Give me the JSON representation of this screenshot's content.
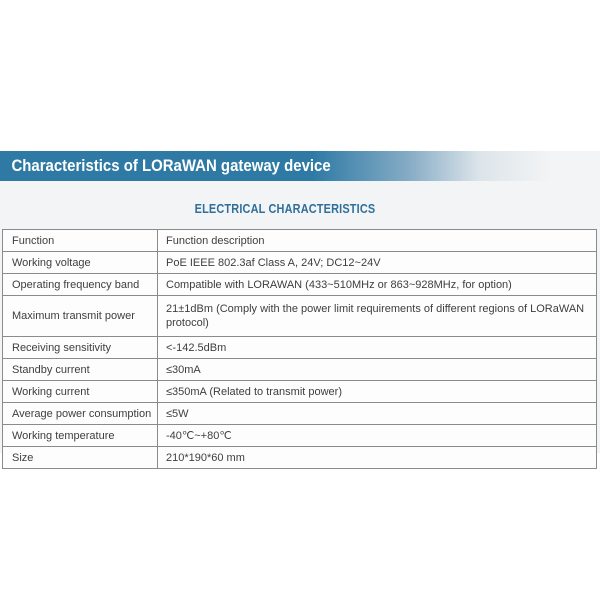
{
  "banner": {
    "title": "Characteristics of LORaWAN gateway device",
    "bg_color": "#2e7aa5",
    "text_color": "#ffffff"
  },
  "section": {
    "heading": "ELECTRICAL CHARACTERISTICS",
    "color": "#2f6f9b"
  },
  "table": {
    "columns": [
      "Function",
      "Function description"
    ],
    "rows": [
      {
        "label": "Function",
        "value": "Function description"
      },
      {
        "label": "Working voltage",
        "value": "PoE IEEE 802.3af Class A, 24V; DC12~24V"
      },
      {
        "label": "Operating frequency band",
        "value": "Compatible with LORAWAN (433~510MHz or 863~928MHz, for option)"
      },
      {
        "label": "Maximum transmit power",
        "value": "21±1dBm (Comply with the power limit requirements of different regions of LORaWAN protocol)"
      },
      {
        "label": "Receiving sensitivity",
        "value": "<-142.5dBm"
      },
      {
        "label": "Standby current",
        "value": "≤30mA"
      },
      {
        "label": "Working current",
        "value": "≤350mA (Related to transmit power)"
      },
      {
        "label": "Average power consumption",
        "value": "≤5W"
      },
      {
        "label": "Working temperature",
        "value": "-40℃~+80℃"
      },
      {
        "label": "Size",
        "value": "210*190*60 mm"
      }
    ]
  },
  "colors": {
    "page_background": "#ffffff",
    "band_background": "#f3f4f5",
    "table_border": "#8b8b8b",
    "cell_text": "#3e3e3e"
  }
}
